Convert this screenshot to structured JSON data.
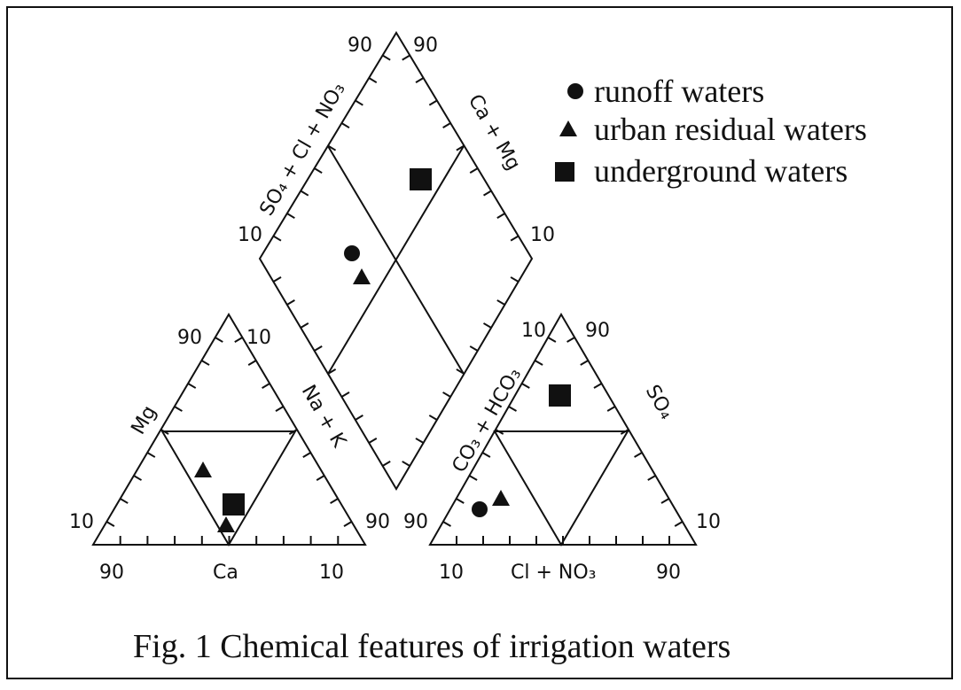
{
  "diagram": {
    "caption": "Fig. 1 Chemical features of irrigation waters",
    "legend": [
      "runoff waters",
      "urban residual waters",
      "underground waters"
    ],
    "cation_triangle": {
      "left_label": "Mg",
      "right_label": "Na + K",
      "bottom_label": "Ca",
      "top_left_tick": "90",
      "top_right_tick": "10",
      "left_bottom_tick": "10",
      "right_bottom_tick": "90",
      "bottom_left_tick": "90",
      "bottom_right_tick": "10"
    },
    "anion_triangle": {
      "left_label": "CO₃ + HCO₃",
      "right_label": "SO₄",
      "bottom_label": "Cl + NO₃",
      "top_left_tick": "10",
      "top_right_tick": "90",
      "left_bottom_tick": "90",
      "right_bottom_tick": "10",
      "bottom_left_tick": "10",
      "bottom_right_tick": "90"
    },
    "diamond": {
      "left_label": "SO₄ + Cl + NO₃",
      "right_label": "Ca + Mg",
      "top_left_tick": "90",
      "top_right_tick": "90",
      "left_tick": "10",
      "right_tick": "10"
    }
  }
}
